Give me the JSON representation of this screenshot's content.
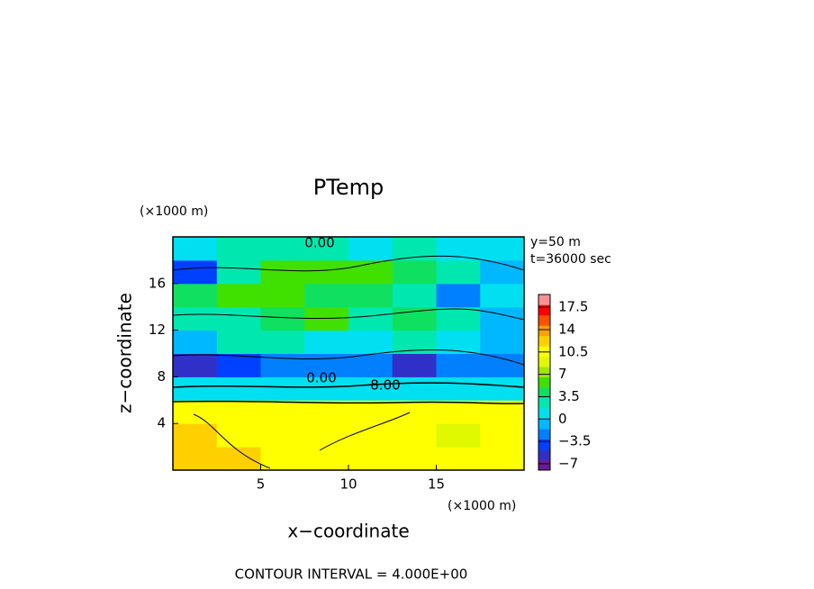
{
  "chart_data": {
    "type": "contourf",
    "title": "PTemp",
    "x_unit": "(×1000 m)",
    "y_unit": "(×1000 m)",
    "xlabel": "x−coordinate",
    "ylabel": "z−coordinate",
    "info": [
      "y=50 m",
      "t=36000 sec"
    ],
    "footer": "CONTOUR INTERVAL = 4.000E+00",
    "contour_labels": [
      "0.00",
      "0.00",
      "8.00"
    ],
    "xlim": [
      0,
      20
    ],
    "xticks": [
      5,
      10,
      15
    ],
    "ylim": [
      0,
      20
    ],
    "yticks": [
      4,
      8,
      12,
      16
    ],
    "x": [
      1.25,
      3.75,
      6.25,
      8.75,
      11.25,
      13.75,
      16.25,
      18.75
    ],
    "y": [
      1,
      3,
      5,
      7,
      9,
      11,
      13,
      15,
      17,
      19
    ],
    "values": [
      [
        12,
        13,
        11,
        10,
        11,
        11,
        10,
        11
      ],
      [
        12,
        11,
        10,
        10,
        11,
        10,
        9,
        10
      ],
      [
        11,
        10,
        10,
        10,
        10,
        10,
        10,
        10
      ],
      [
        0.5,
        0.5,
        0.5,
        1,
        1,
        0.5,
        0.5,
        0.5
      ],
      [
        -5,
        -4,
        -3,
        -2,
        -3,
        -5,
        -2,
        -3
      ],
      [
        0,
        2,
        2,
        1,
        1,
        2,
        1,
        -1
      ],
      [
        3,
        2,
        4,
        5,
        3,
        4,
        2,
        0
      ],
      [
        4,
        5,
        5,
        4,
        4,
        2,
        -2,
        1
      ],
      [
        -4,
        3,
        6,
        5,
        5,
        4,
        3,
        0
      ],
      [
        1,
        2,
        3,
        2,
        1,
        2,
        1,
        1
      ]
    ],
    "colorbar": {
      "lim": [
        -8,
        19.5
      ],
      "ticks": [
        17.5,
        14,
        10.5,
        7,
        3.5,
        0,
        {
          "value": -3.5,
          "label": "−3.5"
        },
        {
          "value": -7,
          "label": "−7"
        }
      ],
      "colors": [
        "#6a1a9a",
        "#3030c8",
        "#0040ff",
        "#0080ff",
        "#00b8ff",
        "#00e0f0",
        "#00e8b0",
        "#10e060",
        "#40e000",
        "#a0e800",
        "#e0f800",
        "#ffff00",
        "#ffd000",
        "#ffa000",
        "#ff5000",
        "#ff0000",
        "#ff9090"
      ]
    }
  }
}
